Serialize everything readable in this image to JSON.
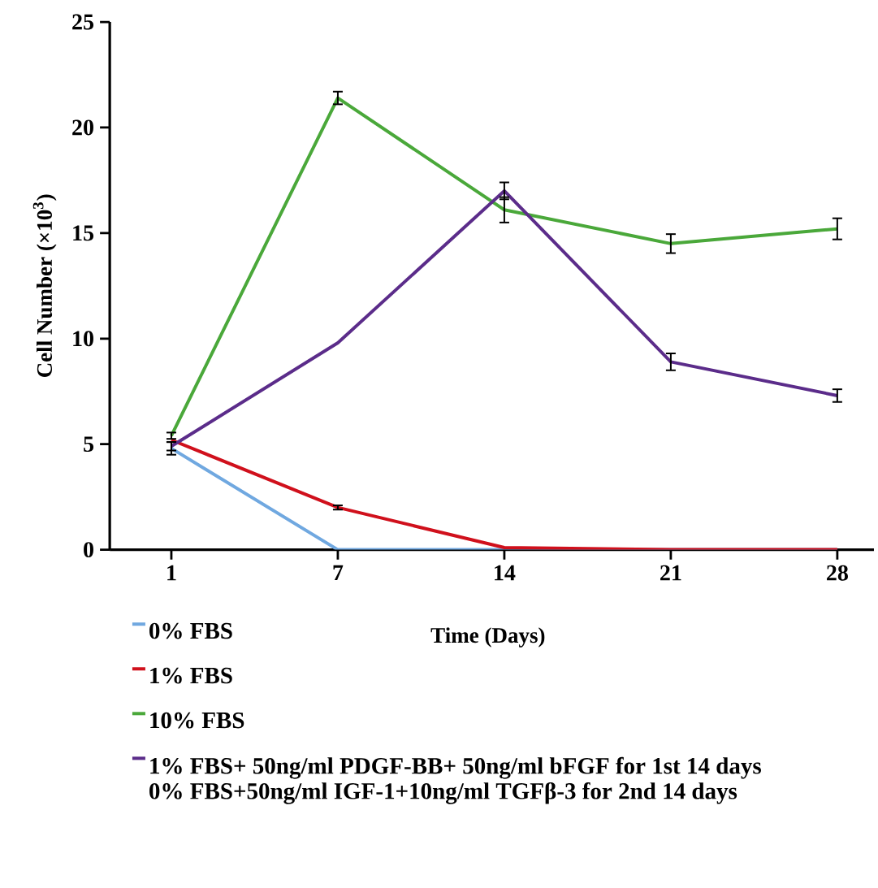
{
  "chart_data": {
    "type": "line",
    "xlabel": "Time (Days)",
    "ylabel": "Cell Number (×10$^{3}$)",
    "categories": [
      "1",
      "7",
      "14",
      "21",
      "28"
    ],
    "ylim": [
      0,
      25
    ],
    "yticks": [
      0,
      5,
      10,
      15,
      20,
      25
    ],
    "grid": false,
    "legend": "bottom left",
    "marker": "none",
    "line_style": "solid",
    "series": [
      {
        "name": "0% FBS",
        "color": "#70a8e0",
        "values": [
          4.8,
          0,
          0,
          0,
          0
        ],
        "errors": [
          0.3,
          null,
          null,
          null,
          null
        ]
      },
      {
        "name": "1% FBS",
        "color": "#d0101c",
        "values": [
          5.2,
          2.0,
          0.1,
          0,
          0
        ],
        "errors": [
          null,
          0.1,
          null,
          null,
          null
        ]
      },
      {
        "name": "10% FBS",
        "color": "#4aa83a",
        "values": [
          5.4,
          21.4,
          16.1,
          14.5,
          15.2
        ],
        "errors": [
          0.15,
          0.3,
          0.6,
          0.45,
          0.5
        ]
      },
      {
        "name": "1% FBS+ 50ng/ml PDGF-BB+ 50ng/ml bFGF for 1st 14 days 0% FBS+50ng/ml IGF-1+10ng/ml TGFβ-3 for 2nd 14 days",
        "color": "#5b2c8a",
        "values": [
          4.9,
          9.8,
          17.0,
          8.9,
          7.3
        ],
        "errors": [
          0.2,
          null,
          0.4,
          0.4,
          0.3
        ]
      }
    ]
  }
}
